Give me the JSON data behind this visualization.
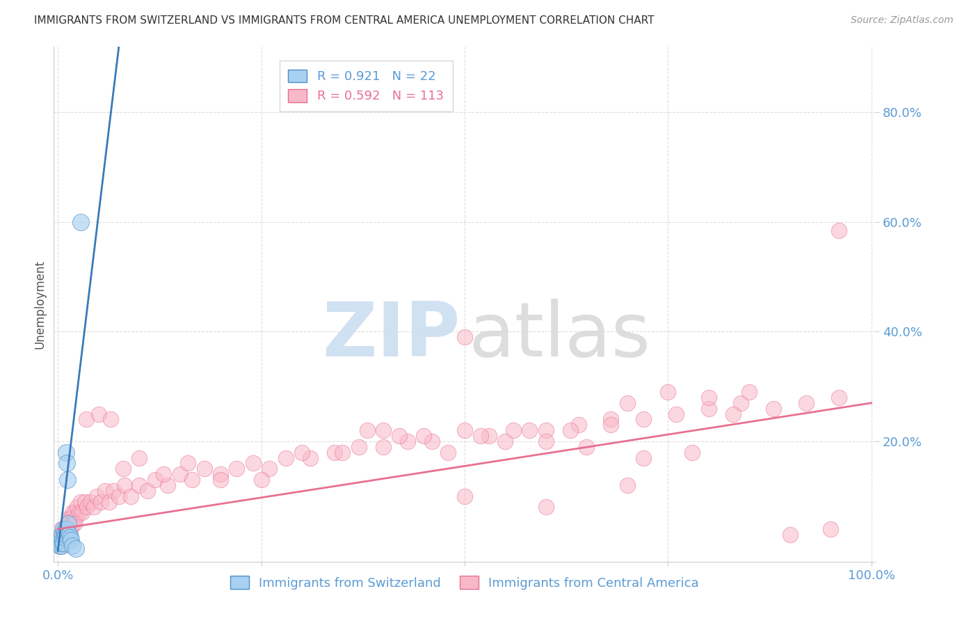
{
  "title": "IMMIGRANTS FROM SWITZERLAND VS IMMIGRANTS FROM CENTRAL AMERICA UNEMPLOYMENT CORRELATION CHART",
  "source": "Source: ZipAtlas.com",
  "ylabel": "Unemployment",
  "legend_blue_r": "0.921",
  "legend_blue_n": "22",
  "legend_pink_r": "0.592",
  "legend_pink_n": "113",
  "legend_label_blue": "Immigrants from Switzerland",
  "legend_label_pink": "Immigrants from Central America",
  "blue_fill_color": "#a8d0f0",
  "blue_edge_color": "#4f90c8",
  "pink_fill_color": "#f9b8c8",
  "pink_edge_color": "#e87090",
  "blue_line_color": "#3a7ab8",
  "pink_line_color": "#e87090",
  "blue_r_text_color": "#5b9bd5",
  "pink_r_text_color": "#e87090",
  "axis_label_color": "#5b9bd5",
  "title_color": "#333333",
  "source_color": "#999999",
  "ylabel_color": "#555555",
  "grid_color": "#dddddd",
  "blue_scatter_x": [
    0.002,
    0.003,
    0.004,
    0.005,
    0.005,
    0.006,
    0.007,
    0.007,
    0.008,
    0.008,
    0.009,
    0.01,
    0.01,
    0.011,
    0.012,
    0.013,
    0.014,
    0.015,
    0.016,
    0.018,
    0.022,
    0.028
  ],
  "blue_scatter_y": [
    0.01,
    0.02,
    0.01,
    0.015,
    0.03,
    0.02,
    0.015,
    0.04,
    0.025,
    0.035,
    0.03,
    0.04,
    0.18,
    0.16,
    0.13,
    0.05,
    0.03,
    0.025,
    0.02,
    0.01,
    0.005,
    0.6
  ],
  "pink_scatter_x": [
    0.001,
    0.002,
    0.003,
    0.003,
    0.004,
    0.004,
    0.005,
    0.005,
    0.006,
    0.007,
    0.007,
    0.008,
    0.008,
    0.009,
    0.01,
    0.01,
    0.011,
    0.012,
    0.013,
    0.014,
    0.015,
    0.016,
    0.017,
    0.018,
    0.019,
    0.02,
    0.022,
    0.024,
    0.026,
    0.028,
    0.03,
    0.033,
    0.036,
    0.04,
    0.044,
    0.048,
    0.053,
    0.058,
    0.063,
    0.068,
    0.075,
    0.082,
    0.09,
    0.1,
    0.11,
    0.12,
    0.135,
    0.15,
    0.165,
    0.18,
    0.2,
    0.22,
    0.24,
    0.26,
    0.28,
    0.31,
    0.34,
    0.37,
    0.4,
    0.43,
    0.46,
    0.5,
    0.53,
    0.56,
    0.6,
    0.64,
    0.68,
    0.72,
    0.76,
    0.8,
    0.84,
    0.88,
    0.92,
    0.96,
    0.02,
    0.035,
    0.05,
    0.065,
    0.08,
    0.1,
    0.13,
    0.16,
    0.2,
    0.25,
    0.3,
    0.35,
    0.4,
    0.45,
    0.5,
    0.55,
    0.6,
    0.65,
    0.7,
    0.75,
    0.8,
    0.85,
    0.9,
    0.95,
    0.5,
    0.6,
    0.7,
    0.38,
    0.42,
    0.48,
    0.52,
    0.58,
    0.63,
    0.68,
    0.72,
    0.78,
    0.83,
    0.96
  ],
  "pink_scatter_y": [
    0.01,
    0.02,
    0.01,
    0.03,
    0.02,
    0.04,
    0.01,
    0.03,
    0.02,
    0.015,
    0.03,
    0.02,
    0.04,
    0.03,
    0.02,
    0.04,
    0.03,
    0.05,
    0.04,
    0.06,
    0.04,
    0.06,
    0.05,
    0.07,
    0.05,
    0.07,
    0.06,
    0.08,
    0.07,
    0.09,
    0.07,
    0.09,
    0.08,
    0.09,
    0.08,
    0.1,
    0.09,
    0.11,
    0.09,
    0.11,
    0.1,
    0.12,
    0.1,
    0.12,
    0.11,
    0.13,
    0.12,
    0.14,
    0.13,
    0.15,
    0.14,
    0.15,
    0.16,
    0.15,
    0.17,
    0.17,
    0.18,
    0.19,
    0.19,
    0.2,
    0.2,
    0.22,
    0.21,
    0.22,
    0.22,
    0.23,
    0.24,
    0.24,
    0.25,
    0.26,
    0.27,
    0.26,
    0.27,
    0.28,
    0.05,
    0.24,
    0.25,
    0.24,
    0.15,
    0.17,
    0.14,
    0.16,
    0.13,
    0.13,
    0.18,
    0.18,
    0.22,
    0.21,
    0.39,
    0.2,
    0.2,
    0.19,
    0.27,
    0.29,
    0.28,
    0.29,
    0.03,
    0.04,
    0.1,
    0.08,
    0.12,
    0.22,
    0.21,
    0.18,
    0.21,
    0.22,
    0.22,
    0.23,
    0.17,
    0.18,
    0.25,
    0.585
  ],
  "blue_line_x": [
    0.0,
    0.075
  ],
  "blue_line_y": [
    0.0,
    0.92
  ],
  "pink_line_x": [
    0.0,
    1.0
  ],
  "pink_line_y": [
    0.04,
    0.27
  ],
  "xlim": [
    -0.005,
    1.005
  ],
  "ylim": [
    -0.02,
    0.92
  ],
  "yticks": [
    0.2,
    0.4,
    0.6,
    0.8
  ],
  "ytick_labels": [
    "20.0%",
    "40.0%",
    "60.0%",
    "80.0%"
  ],
  "xtick_left_label": "0.0%",
  "xtick_right_label": "100.0%"
}
